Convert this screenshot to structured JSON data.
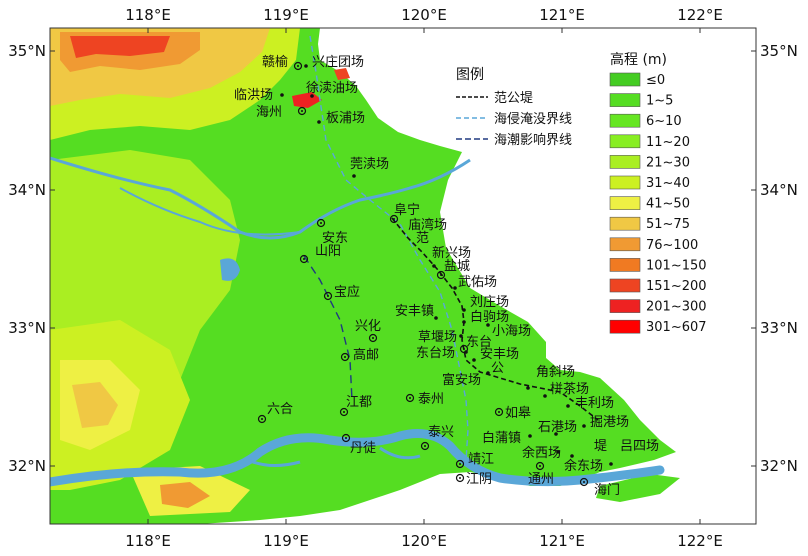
{
  "legend": {
    "title": "图例",
    "items": [
      {
        "label": "范公堤",
        "style": "dash-black"
      },
      {
        "label": "海侵淹没界线",
        "style": "dash-blue"
      },
      {
        "label": "海潮影响界线",
        "style": "dash-navy"
      }
    ]
  },
  "elevation_legend": {
    "title": "高程 (m)",
    "classes": [
      {
        "label": "≤0",
        "color": "#44cc22"
      },
      {
        "label": "1~5",
        "color": "#55dd22"
      },
      {
        "label": "6~10",
        "color": "#66e622"
      },
      {
        "label": "11~20",
        "color": "#88ee22"
      },
      {
        "label": "21~30",
        "color": "#aaee22"
      },
      {
        "label": "31~40",
        "color": "#ccf022"
      },
      {
        "label": "41~50",
        "color": "#eef044"
      },
      {
        "label": "51~75",
        "color": "#f0c844"
      },
      {
        "label": "76~100",
        "color": "#f09a33"
      },
      {
        "label": "101~150",
        "color": "#f07a22"
      },
      {
        "label": "151~200",
        "color": "#ee4422"
      },
      {
        "label": "201~300",
        "color": "#ee2222"
      },
      {
        "label": "301~607",
        "color": "#ff0000"
      }
    ]
  },
  "axes": {
    "x_ticks": [
      "118°E",
      "119°E",
      "120°E",
      "121°E",
      "122°E"
    ],
    "y_ticks": [
      "35°N",
      "34°N",
      "33°N",
      "32°N"
    ]
  },
  "places": {
    "ganyu": "赣榆",
    "xingzhuang": "兴庄团场",
    "linhong": "临洪场",
    "xudu": "徐渎油场",
    "haizhou": "海州",
    "banpu": "板浦场",
    "mangdu": "莞渎场",
    "andong": "安东",
    "funing": "阜宁",
    "miaowan": "庙湾场",
    "fan": "范",
    "shanyang": "山阳",
    "xinxing": "新兴场",
    "yancheng": "盐城",
    "wuyou": "武佑场",
    "baoying": "宝应",
    "anfeng_town": "安丰镇",
    "liuzhuang": "刘庄场",
    "baiju": "白驹场",
    "xiaohai": "小海场",
    "xinghua": "兴化",
    "caoyan": "草堰场",
    "dongtai": "东台",
    "dongtai_chang": "东台场",
    "anfeng_chang": "安丰场",
    "gao_you": "高邮",
    "gong": "公",
    "fuan": "富安场",
    "jiaoxie": "角斜场",
    "jiucha": "栟茶场",
    "fengli": "丰利场",
    "jiangdu": "江都",
    "taizhou": "泰州",
    "liuhe": "六合",
    "rugao": "如皋",
    "juegang": "掘港场",
    "shigang": "石港场",
    "taixing": "泰兴",
    "baipu": "白蒲镇",
    "di": "堤",
    "lvsi": "吕四场",
    "danxu": "丹徒",
    "jingjiang": "靖江",
    "yuxi": "余西场",
    "yudong": "余东场",
    "jiangyin": "江阴",
    "tongzhou": "通州",
    "haimen": "海门"
  }
}
